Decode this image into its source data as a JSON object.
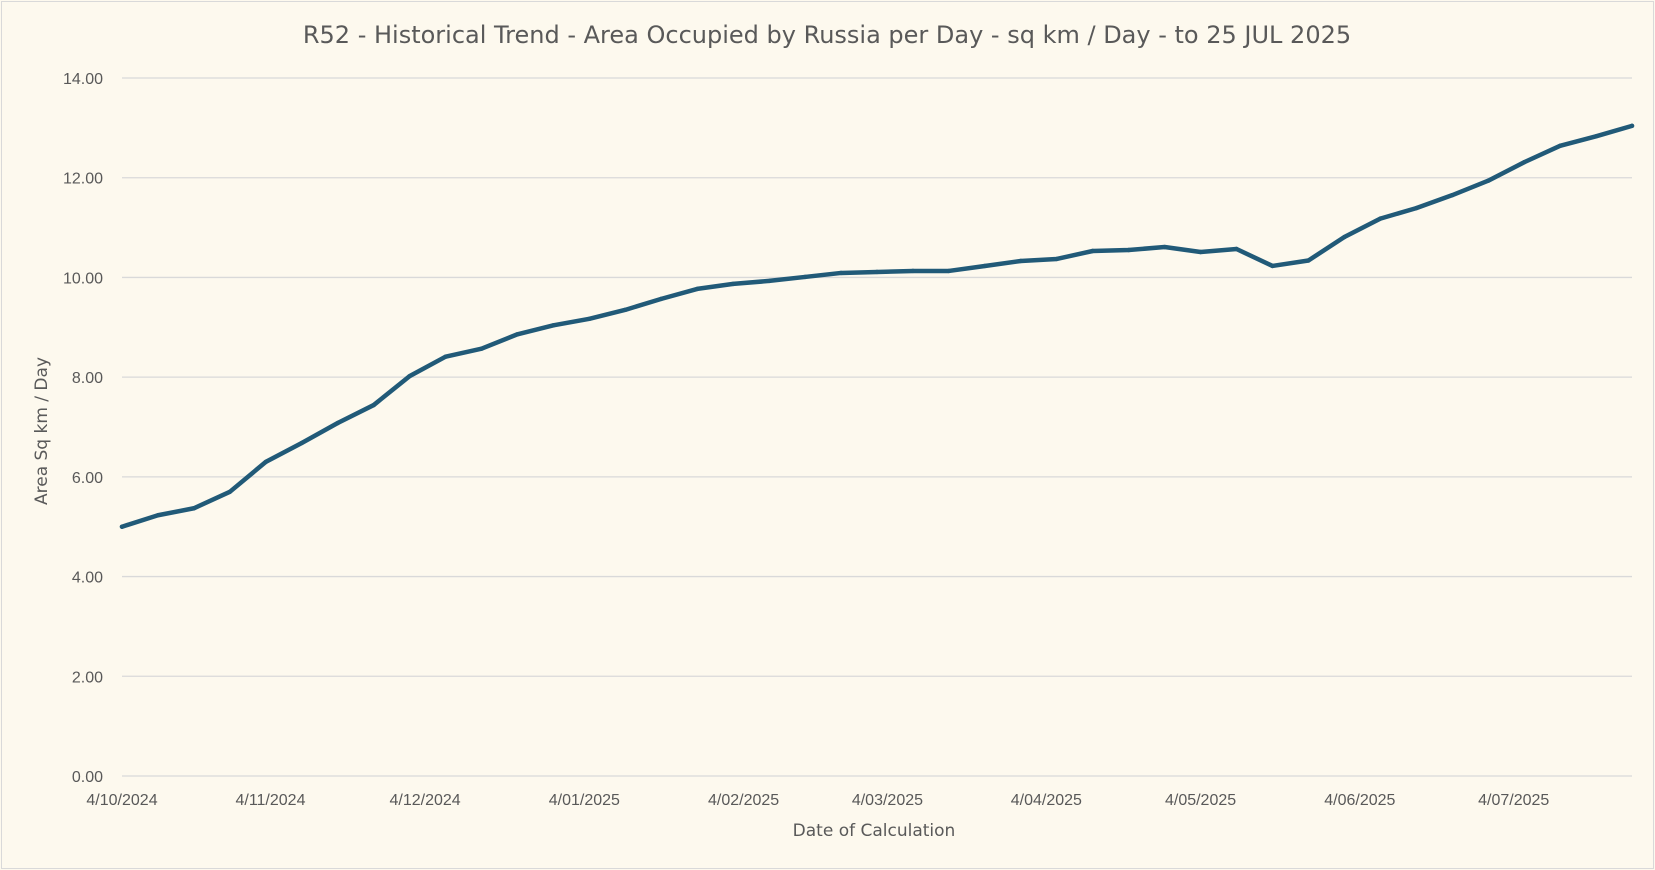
{
  "chart_data": {
    "type": "line",
    "title": "R52 - Historical Trend - Area Occupied by Russia per Day - sq km / Day - to 25 JUL 2025",
    "xlabel": "Date of Calculation",
    "ylabel": "Area Sq km / Day",
    "ylim": [
      0,
      14
    ],
    "yticks": [
      "0.00",
      "2.00",
      "4.00",
      "6.00",
      "8.00",
      "10.00",
      "12.00",
      "14.00"
    ],
    "xticks": [
      "4/10/2024",
      "4/11/2024",
      "4/12/2024",
      "4/01/2025",
      "4/02/2025",
      "4/03/2025",
      "4/04/2025",
      "4/05/2025",
      "4/06/2025",
      "4/07/2025"
    ],
    "grid": true,
    "legend": "none",
    "colors": {
      "line": "#215a78",
      "grid": "#d9d9d9",
      "background": "#fdf9ee",
      "text": "#595959"
    },
    "series": [
      {
        "values": [
          5.0,
          5.23,
          5.37,
          5.7,
          6.3,
          6.68,
          7.08,
          7.44,
          8.02,
          8.41,
          8.57,
          8.86,
          9.04,
          9.17,
          9.35,
          9.57,
          9.77,
          9.87,
          9.93,
          10.01,
          10.09,
          10.11,
          10.13,
          10.13,
          10.23,
          10.33,
          10.37,
          10.53,
          10.55,
          10.61,
          10.51,
          10.57,
          10.23,
          10.34,
          10.81,
          11.18,
          11.39,
          11.65,
          11.94,
          12.31,
          12.64,
          12.83,
          13.04
        ]
      }
    ]
  }
}
